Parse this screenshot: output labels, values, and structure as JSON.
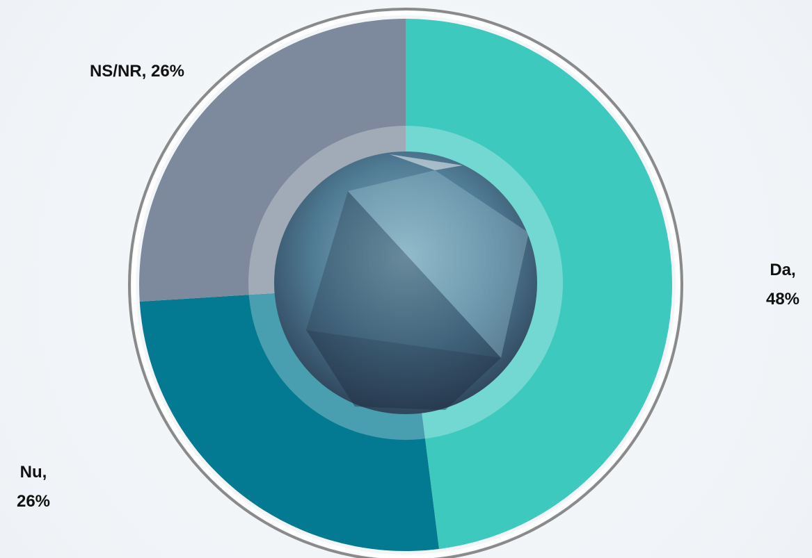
{
  "chart_data": {
    "type": "pie",
    "values": [
      48,
      26,
      26
    ],
    "value_labels": [
      "Da, 48%",
      "Nu, 26%",
      "NS/NR, 26%"
    ],
    "colors": [
      "#3ec9bf",
      "#037a91",
      "#7d899c"
    ]
  }
}
